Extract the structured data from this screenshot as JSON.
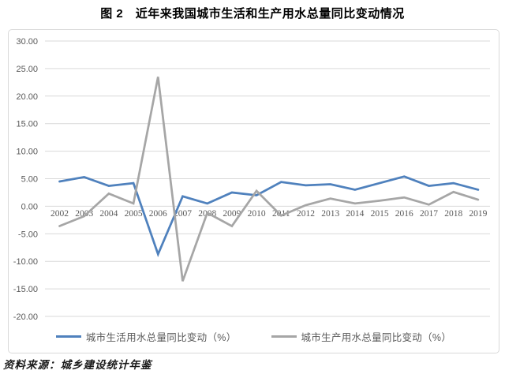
{
  "title": "图 2　近年来我国城市生活和生产用水总量同比变动情况",
  "source": "资料来源：城乡建设统计年鉴",
  "colors": {
    "domestic_line": "#4f81bd",
    "production_line": "#a6a6a6",
    "gridline": "#d9d9d9",
    "box_border": "#d9d9d9",
    "axis_text": "#595959"
  },
  "chart_data": {
    "type": "line",
    "x": [
      "2002",
      "2003",
      "2004",
      "2005",
      "2006",
      "2007",
      "2008",
      "2009",
      "2010",
      "2011",
      "2012",
      "2013",
      "2014",
      "2015",
      "2016",
      "2017",
      "2018",
      "2019"
    ],
    "series": [
      {
        "name": "城市生活用水总量同比变动（%）",
        "color": "#4f81bd",
        "values": [
          4.5,
          5.3,
          3.7,
          4.2,
          -8.7,
          1.8,
          0.5,
          2.5,
          2.0,
          4.4,
          3.8,
          4.0,
          3.0,
          4.2,
          5.4,
          3.7,
          4.2,
          3.0
        ]
      },
      {
        "name": "城市生产用水总量同比变动（%）",
        "color": "#a6a6a6",
        "values": [
          -3.6,
          -1.8,
          2.3,
          0.5,
          23.5,
          -13.6,
          -1.2,
          -3.6,
          2.8,
          -1.7,
          0.2,
          1.4,
          0.5,
          1.0,
          1.6,
          0.3,
          2.6,
          1.2
        ]
      }
    ],
    "ylim": [
      -20,
      30
    ],
    "ytick_step": 5,
    "yticks": [
      "30.00",
      "25.00",
      "20.00",
      "15.00",
      "10.00",
      "5.00",
      "0.00",
      "-5.00",
      "-10.00",
      "-15.00",
      "-20.00"
    ],
    "grid": true,
    "legend_position": "bottom",
    "xlabel": "",
    "ylabel": ""
  }
}
